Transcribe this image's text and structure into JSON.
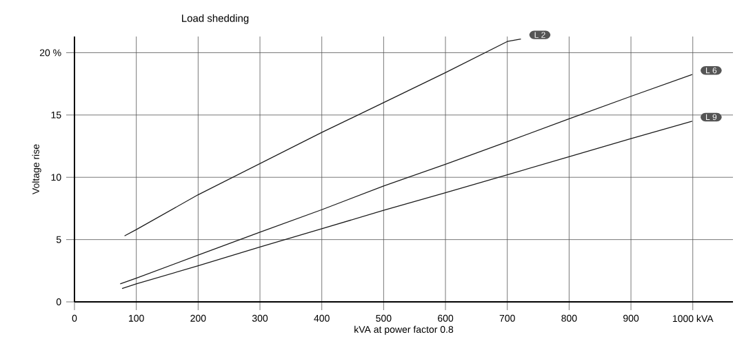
{
  "chart_data": {
    "type": "line",
    "title": "Load shedding",
    "xlabel": "kVA at power factor 0.8",
    "ylabel": "Voltage rise",
    "xlim": [
      0,
      1065
    ],
    "ylim": [
      0,
      21.3
    ],
    "xticks": [
      0,
      100,
      200,
      300,
      400,
      500,
      600,
      700,
      800,
      900,
      {
        "value": 1000,
        "label": "1000  kVA"
      }
    ],
    "yticks": [
      0,
      5,
      10,
      15,
      {
        "value": 20,
        "label": "20 %"
      }
    ],
    "grid": true,
    "marker": "none",
    "line_style": "solid",
    "series": [
      {
        "name": "L 2",
        "color": "#1a1a1a",
        "x": [
          81,
          100,
          200,
          300,
          400,
          500,
          600,
          700,
          722
        ],
        "values": [
          5.3,
          5.8,
          8.6,
          11.1,
          13.6,
          16.0,
          18.4,
          20.9,
          21.1
        ]
      },
      {
        "name": "L 6",
        "color": "#1a1a1a",
        "x": [
          74,
          100,
          200,
          300,
          400,
          500,
          600,
          700,
          800,
          900,
          999
        ],
        "values": [
          1.44,
          1.9,
          3.75,
          5.6,
          7.4,
          9.3,
          11.05,
          12.85,
          14.7,
          16.5,
          18.25
        ]
      },
      {
        "name": "L 9",
        "color": "#1a1a1a",
        "x": [
          77,
          100,
          200,
          300,
          400,
          500,
          600,
          700,
          800,
          900,
          999
        ],
        "values": [
          1.07,
          1.44,
          2.9,
          4.4,
          5.87,
          7.35,
          8.76,
          10.2,
          11.65,
          13.1,
          14.5
        ]
      }
    ]
  }
}
